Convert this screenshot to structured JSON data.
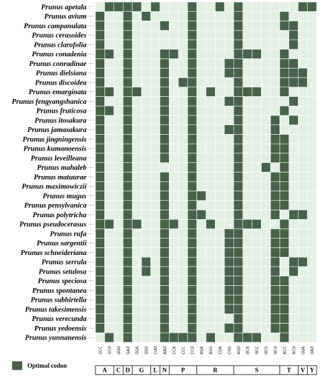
{
  "chart_data": {
    "type": "heatmap",
    "title": "",
    "xlabel": "",
    "ylabel": "",
    "grid": true,
    "legend": {
      "label": "Optimal codon",
      "color": "#48614a",
      "position": "bottom-left"
    },
    "colors": {
      "on": "#48614a",
      "off": "#e4f0e6",
      "grid": "#ffffff"
    },
    "codons": [
      "GCC",
      "GCU",
      "UGU",
      "GAU",
      "GGA",
      "GGU",
      "CUU",
      "AAU",
      "CCA",
      "CCC",
      "CCU",
      "AGA",
      "AGG",
      "CGA",
      "CGU",
      "AGU",
      "UCA",
      "UCC",
      "UCG",
      "UCU",
      "ACC",
      "ACU",
      "GUA",
      "UAU"
    ],
    "amino_acid_groups": [
      {
        "label": "A",
        "count": 2
      },
      {
        "label": "C",
        "count": 1
      },
      {
        "label": "D",
        "count": 1
      },
      {
        "label": "G",
        "count": 2
      },
      {
        "label": "L",
        "count": 1
      },
      {
        "label": "N",
        "count": 1
      },
      {
        "label": "P",
        "count": 3
      },
      {
        "label": "R",
        "count": 4
      },
      {
        "label": "S",
        "count": 5
      },
      {
        "label": "T",
        "count": 2
      },
      {
        "label": "V",
        "count": 1
      },
      {
        "label": "Y",
        "count": 1
      }
    ],
    "species": [
      "Prunus apetala",
      "Prunus avium",
      "Prunus campanulata",
      "Prunus cerasoides",
      "Prunus clarofolia",
      "Prunus conadenia",
      "Prunus conradinae",
      "Prunus dielsiana",
      "Prunus discoidea",
      "Prunus emarginata",
      "Prunus fengyangshanica",
      "Prunus fruticosa",
      "Prunus itosakura",
      "Prunus jamasakura",
      "Prunus jingningensis",
      "Prunus kumanoensis",
      "Prunus leveilleana",
      "Prunus mahaleb",
      "Prunus matuurae",
      "Prunus maximowiczii",
      "Prunus mugus",
      "Prunus pensylvanica",
      "Prunus polytricha",
      "Prunus pseudocerasus",
      "Prunus rufa",
      "Prunus sargentii",
      "Prunus schneideriana",
      "Prunus serrula",
      "Prunus setulosa",
      "Prunus speciosa",
      "Prunus spontanea",
      "Prunus subhirtella",
      "Prunus takesimensis",
      "Prunus verecunda",
      "Prunus yedoensis",
      "Prunus yunnanensis"
    ],
    "matrix": [
      [
        0,
        1,
        1,
        1,
        1,
        0,
        1,
        0,
        0,
        0,
        1,
        0,
        0,
        1,
        0,
        1,
        0,
        0,
        0,
        0,
        0,
        0,
        1,
        1
      ],
      [
        1,
        0,
        0,
        1,
        0,
        1,
        0,
        0,
        0,
        0,
        1,
        0,
        0,
        0,
        0,
        1,
        0,
        0,
        0,
        0,
        1,
        0,
        0,
        0
      ],
      [
        1,
        0,
        0,
        1,
        0,
        0,
        0,
        1,
        0,
        0,
        1,
        0,
        0,
        0,
        0,
        1,
        0,
        0,
        0,
        0,
        1,
        1,
        0,
        0
      ],
      [
        1,
        0,
        0,
        1,
        0,
        0,
        0,
        0,
        0,
        0,
        1,
        0,
        0,
        0,
        0,
        1,
        0,
        0,
        0,
        0,
        0,
        1,
        0,
        0
      ],
      [
        1,
        0,
        0,
        1,
        0,
        0,
        0,
        0,
        0,
        0,
        1,
        0,
        0,
        0,
        0,
        1,
        0,
        0,
        0,
        0,
        0,
        1,
        0,
        0
      ],
      [
        1,
        1,
        0,
        1,
        0,
        0,
        0,
        1,
        1,
        0,
        1,
        0,
        0,
        0,
        0,
        1,
        1,
        1,
        0,
        0,
        1,
        0,
        0,
        0
      ],
      [
        1,
        0,
        0,
        1,
        0,
        0,
        0,
        1,
        0,
        0,
        1,
        0,
        0,
        0,
        1,
        1,
        0,
        0,
        0,
        0,
        1,
        1,
        0,
        0
      ],
      [
        1,
        0,
        0,
        1,
        0,
        0,
        0,
        1,
        0,
        0,
        1,
        0,
        0,
        0,
        1,
        1,
        0,
        0,
        0,
        0,
        1,
        1,
        1,
        0
      ],
      [
        1,
        0,
        0,
        1,
        0,
        0,
        0,
        1,
        0,
        1,
        1,
        0,
        0,
        0,
        0,
        1,
        0,
        0,
        0,
        0,
        1,
        1,
        1,
        0
      ],
      [
        1,
        1,
        0,
        1,
        1,
        0,
        0,
        1,
        0,
        0,
        1,
        0,
        1,
        0,
        0,
        1,
        1,
        1,
        0,
        0,
        1,
        0,
        0,
        0
      ],
      [
        1,
        0,
        0,
        1,
        0,
        0,
        0,
        1,
        0,
        0,
        1,
        0,
        0,
        0,
        1,
        1,
        0,
        0,
        0,
        0,
        0,
        1,
        0,
        0
      ],
      [
        1,
        1,
        0,
        1,
        0,
        0,
        0,
        1,
        0,
        0,
        1,
        0,
        0,
        0,
        0,
        1,
        0,
        0,
        0,
        0,
        1,
        0,
        0,
        0
      ],
      [
        1,
        0,
        0,
        1,
        0,
        0,
        0,
        1,
        0,
        0,
        1,
        0,
        0,
        0,
        0,
        1,
        0,
        0,
        0,
        1,
        0,
        1,
        0,
        0
      ],
      [
        1,
        0,
        0,
        1,
        0,
        0,
        0,
        1,
        0,
        0,
        1,
        0,
        0,
        0,
        1,
        1,
        0,
        0,
        0,
        1,
        0,
        0,
        0,
        0
      ],
      [
        1,
        0,
        0,
        1,
        0,
        0,
        0,
        1,
        0,
        0,
        1,
        0,
        0,
        0,
        0,
        1,
        0,
        0,
        0,
        1,
        1,
        0,
        0,
        0
      ],
      [
        1,
        0,
        0,
        1,
        0,
        0,
        0,
        1,
        0,
        0,
        1,
        0,
        0,
        0,
        0,
        1,
        0,
        0,
        0,
        1,
        1,
        0,
        0,
        0
      ],
      [
        1,
        0,
        0,
        1,
        0,
        0,
        0,
        1,
        0,
        0,
        1,
        0,
        0,
        0,
        0,
        1,
        0,
        0,
        0,
        1,
        1,
        0,
        0,
        0
      ],
      [
        1,
        0,
        0,
        1,
        0,
        0,
        0,
        0,
        0,
        0,
        1,
        0,
        0,
        0,
        0,
        1,
        0,
        0,
        1,
        0,
        1,
        0,
        0,
        0
      ],
      [
        1,
        0,
        0,
        1,
        0,
        0,
        0,
        1,
        0,
        0,
        1,
        0,
        0,
        0,
        0,
        1,
        0,
        0,
        0,
        1,
        1,
        0,
        0,
        0
      ],
      [
        1,
        0,
        0,
        1,
        0,
        0,
        0,
        1,
        0,
        0,
        1,
        0,
        0,
        0,
        0,
        1,
        0,
        0,
        0,
        1,
        1,
        0,
        0,
        0
      ],
      [
        1,
        0,
        0,
        1,
        0,
        0,
        0,
        1,
        0,
        0,
        1,
        1,
        0,
        0,
        0,
        1,
        0,
        0,
        0,
        1,
        1,
        0,
        0,
        0
      ],
      [
        1,
        0,
        0,
        1,
        0,
        0,
        0,
        1,
        0,
        0,
        1,
        0,
        0,
        0,
        0,
        1,
        0,
        0,
        0,
        1,
        1,
        0,
        0,
        0
      ],
      [
        1,
        0,
        0,
        1,
        0,
        0,
        0,
        1,
        0,
        0,
        1,
        1,
        0,
        0,
        0,
        1,
        0,
        0,
        0,
        1,
        0,
        1,
        1,
        0
      ],
      [
        1,
        1,
        0,
        1,
        1,
        0,
        0,
        1,
        1,
        0,
        1,
        0,
        1,
        0,
        0,
        1,
        1,
        1,
        0,
        0,
        1,
        0,
        0,
        0
      ],
      [
        1,
        0,
        0,
        1,
        0,
        0,
        0,
        1,
        0,
        0,
        1,
        0,
        0,
        0,
        1,
        1,
        0,
        0,
        0,
        1,
        1,
        0,
        0,
        0
      ],
      [
        1,
        0,
        0,
        1,
        0,
        0,
        0,
        1,
        0,
        0,
        1,
        0,
        0,
        0,
        1,
        1,
        0,
        0,
        0,
        1,
        1,
        0,
        0,
        0
      ],
      [
        1,
        0,
        0,
        1,
        0,
        0,
        0,
        1,
        0,
        0,
        1,
        0,
        0,
        0,
        1,
        1,
        0,
        0,
        0,
        1,
        1,
        0,
        0,
        0
      ],
      [
        1,
        0,
        0,
        1,
        0,
        1,
        0,
        1,
        0,
        0,
        1,
        0,
        0,
        0,
        1,
        1,
        0,
        0,
        0,
        1,
        0,
        1,
        1,
        0
      ],
      [
        1,
        0,
        0,
        1,
        0,
        1,
        0,
        1,
        0,
        0,
        1,
        0,
        0,
        0,
        1,
        1,
        0,
        0,
        0,
        1,
        0,
        1,
        0,
        0
      ],
      [
        1,
        0,
        0,
        1,
        0,
        0,
        0,
        1,
        0,
        0,
        1,
        0,
        0,
        0,
        1,
        1,
        0,
        0,
        0,
        1,
        1,
        0,
        0,
        0
      ],
      [
        1,
        0,
        0,
        1,
        0,
        0,
        0,
        1,
        0,
        0,
        1,
        0,
        0,
        0,
        1,
        1,
        0,
        0,
        0,
        1,
        1,
        0,
        0,
        0
      ],
      [
        1,
        0,
        0,
        1,
        0,
        0,
        0,
        1,
        0,
        0,
        1,
        0,
        0,
        0,
        1,
        1,
        0,
        0,
        0,
        1,
        1,
        0,
        0,
        0
      ],
      [
        1,
        0,
        0,
        1,
        0,
        0,
        0,
        1,
        0,
        0,
        1,
        0,
        0,
        0,
        1,
        1,
        0,
        0,
        0,
        1,
        1,
        0,
        0,
        0
      ],
      [
        1,
        0,
        0,
        1,
        0,
        0,
        0,
        1,
        0,
        0,
        1,
        0,
        0,
        0,
        0,
        1,
        0,
        0,
        0,
        1,
        1,
        0,
        0,
        0
      ],
      [
        1,
        0,
        0,
        1,
        0,
        0,
        0,
        1,
        0,
        0,
        1,
        0,
        0,
        0,
        1,
        1,
        0,
        0,
        0,
        1,
        1,
        0,
        0,
        0
      ],
      [
        0,
        1,
        0,
        1,
        0,
        0,
        0,
        1,
        1,
        1,
        1,
        0,
        1,
        0,
        0,
        1,
        1,
        1,
        0,
        0,
        1,
        0,
        0,
        0
      ]
    ]
  }
}
